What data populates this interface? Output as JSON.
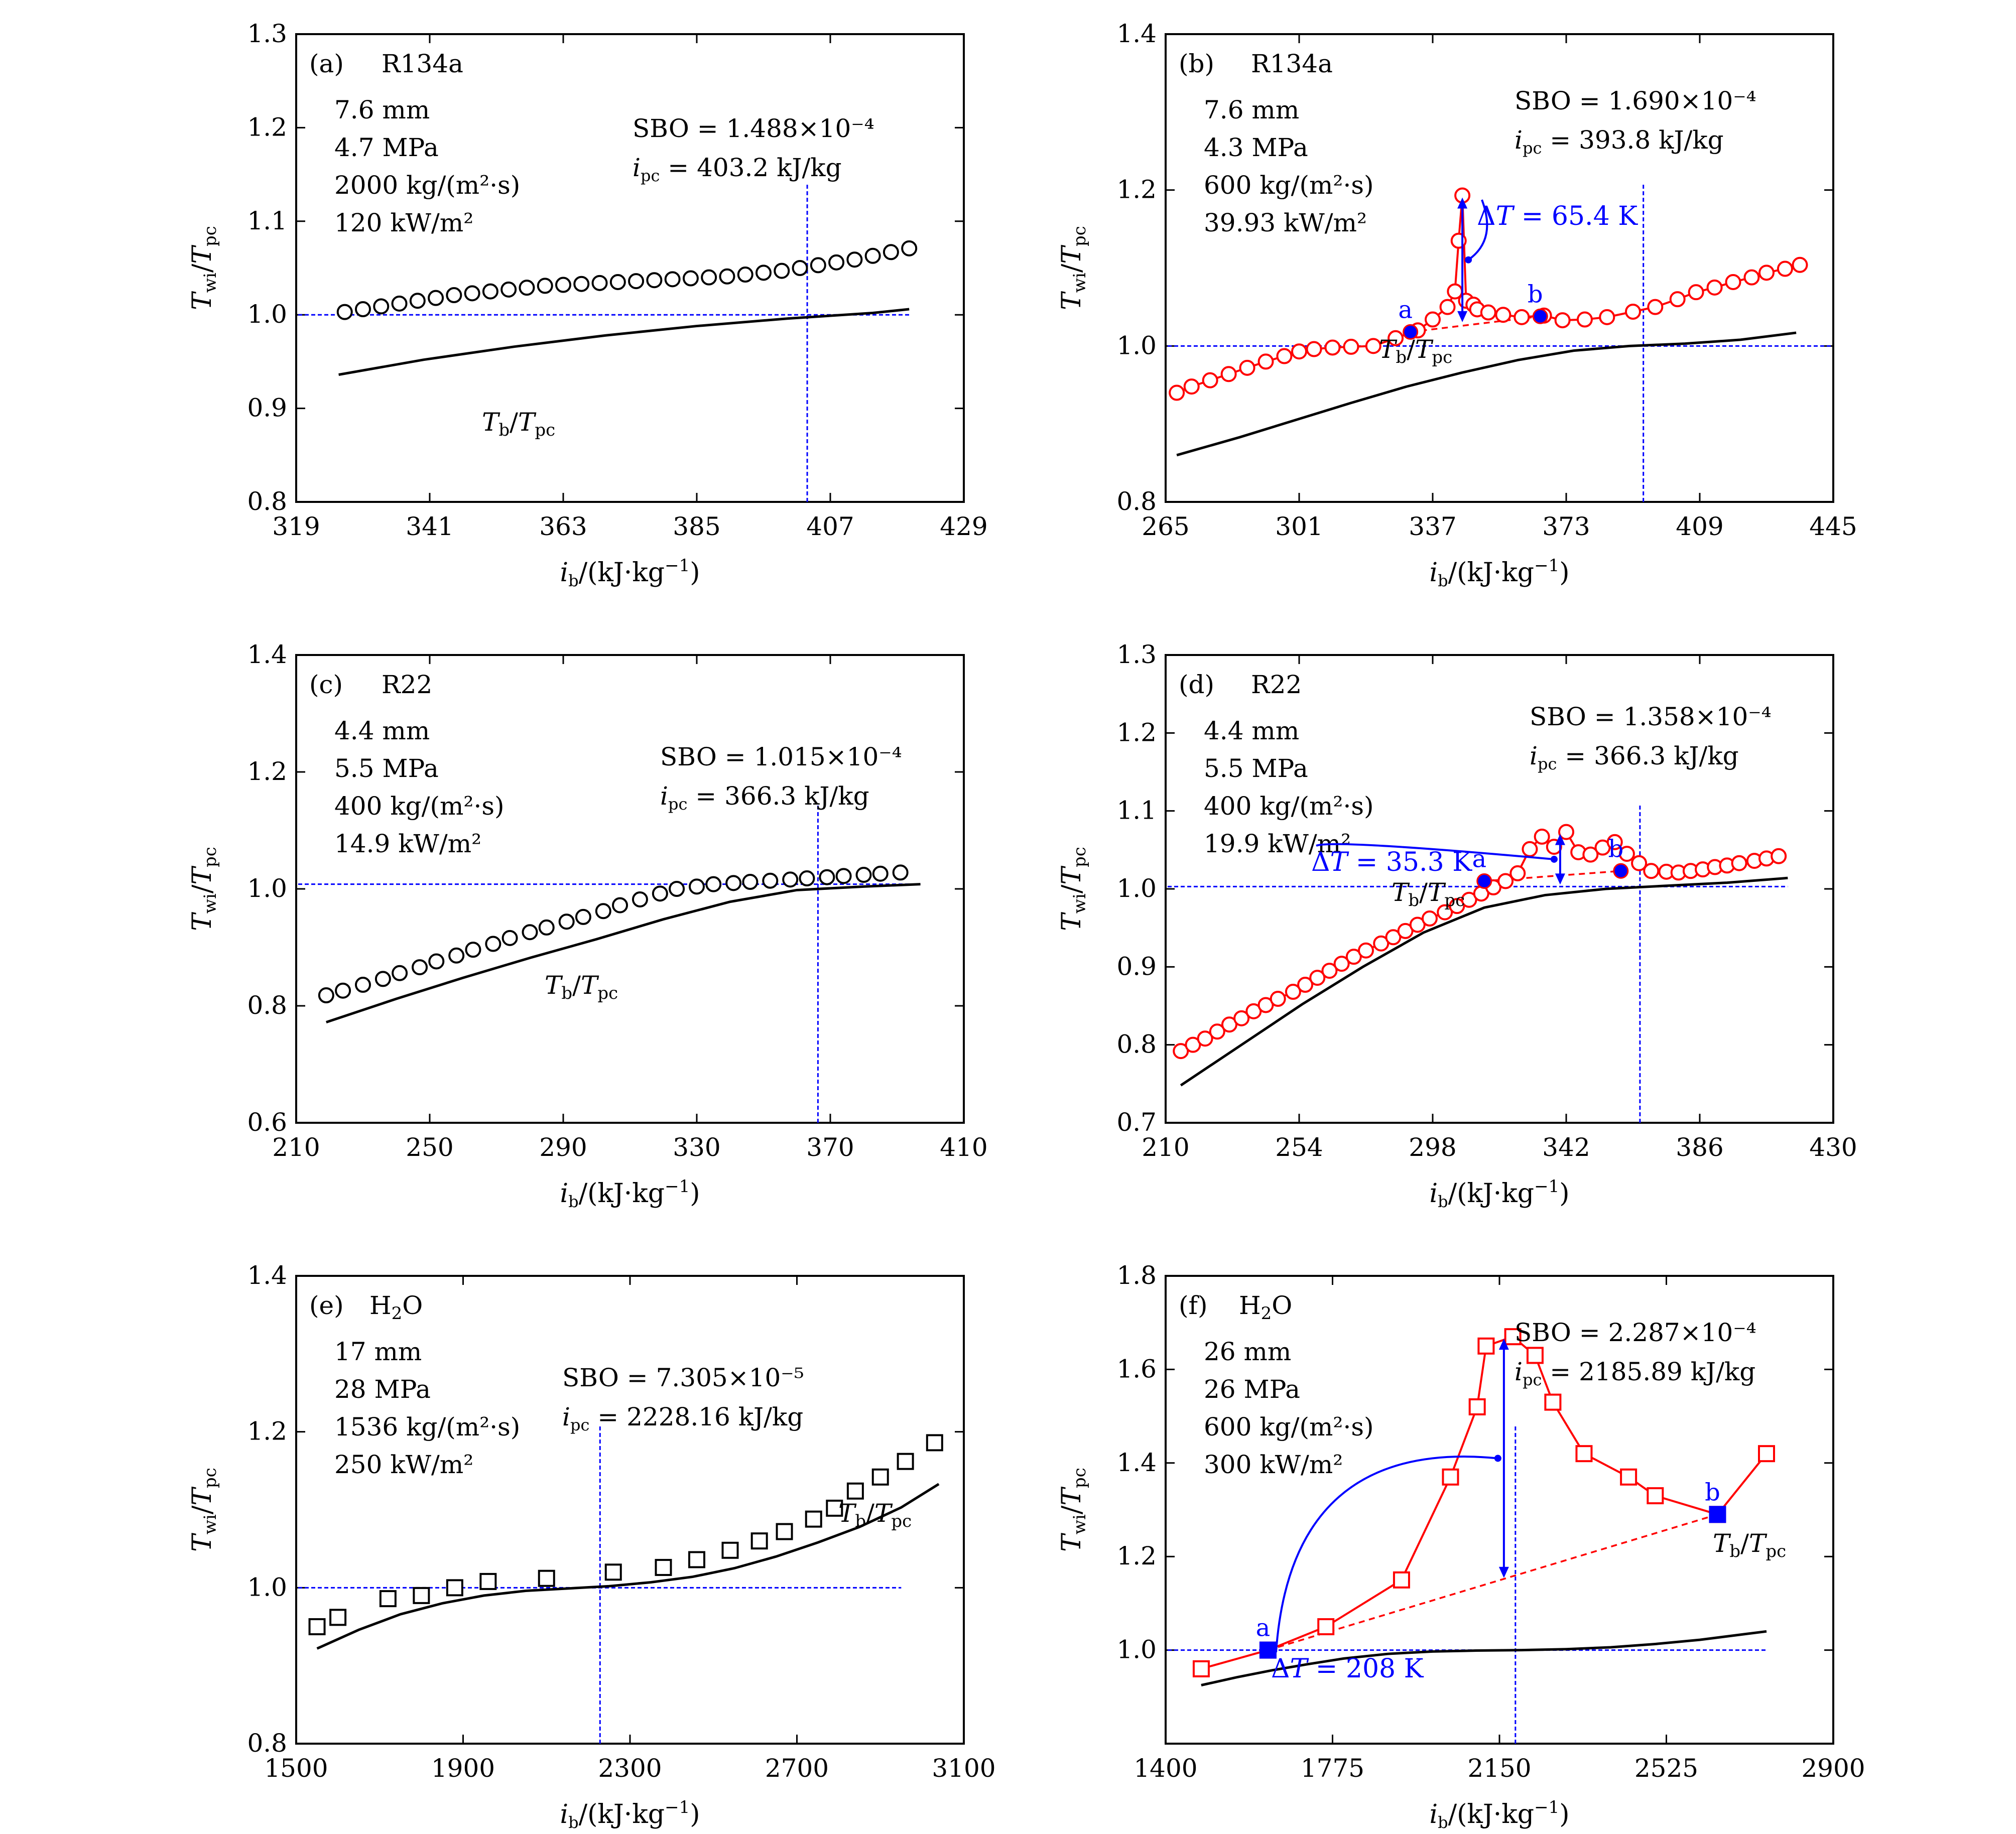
{
  "figure_label": "Twi/Tpc and Tb/Tpc versus ib",
  "chart_data": [
    {
      "type": "scatter",
      "label": "(a)",
      "fluid": "R134a",
      "params": [
        "7.6 mm",
        "4.7 MPa",
        "2000 kg/(m²·s)",
        "120 kW/m²"
      ],
      "sbo": "SBO = 1.488×10⁻⁴",
      "ipc_label": "ipc = 403.2 kJ/kg",
      "ipc": 403.2,
      "xlabel": "ib/(kJ·kg⁻¹)",
      "ylabel": "Twi/Tpc",
      "xlim": [
        319,
        429
      ],
      "ylim": [
        0.8,
        1.3
      ],
      "xticks": [
        319,
        341,
        363,
        385,
        407,
        429
      ],
      "yticks": [
        0.8,
        0.9,
        1.0,
        1.1,
        1.2,
        1.3
      ],
      "ytick_labels": [
        "0.8",
        "0.9",
        "1.0",
        "1.1",
        "1.2",
        "1.3"
      ],
      "marker": "circle",
      "marker_color": "#000000",
      "line_color": "#000000",
      "connect": false,
      "series_name": "Twi/Tpc",
      "x": [
        327,
        330,
        333,
        336,
        339,
        342,
        345,
        348,
        351,
        354,
        357,
        360,
        363,
        366,
        369,
        372,
        375,
        378,
        381,
        384,
        387,
        390,
        393,
        396,
        399,
        402,
        405,
        408,
        411,
        414,
        417,
        420
      ],
      "y": [
        1.003,
        1.006,
        1.009,
        1.012,
        1.015,
        1.018,
        1.021,
        1.023,
        1.025,
        1.027,
        1.029,
        1.031,
        1.032,
        1.033,
        1.034,
        1.035,
        1.036,
        1.037,
        1.038,
        1.039,
        1.04,
        1.041,
        1.043,
        1.045,
        1.047,
        1.05,
        1.053,
        1.056,
        1.059,
        1.063,
        1.067,
        1.071
      ],
      "filled_points": [],
      "tb_name": "Tb/Tpc",
      "tb_x": [
        326,
        340,
        355,
        370,
        385,
        400,
        414,
        420
      ],
      "tb_y": [
        0.936,
        0.952,
        0.966,
        0.978,
        0.988,
        0.996,
        1.002,
        1.006
      ],
      "ref_y": 1.0,
      "ref_x_range": [
        319,
        420
      ],
      "delta_label": "",
      "dashed_ab": null,
      "spike": null
    },
    {
      "type": "scatter",
      "label": "(b)",
      "fluid": "R134a",
      "params": [
        "7.6 mm",
        "4.3 MPa",
        "600 kg/(m²·s)",
        "39.93 kW/m²"
      ],
      "sbo": "SBO = 1.690×10⁻⁴",
      "ipc_label": "ipc = 393.8 kJ/kg",
      "ipc": 393.8,
      "xlabel": "ib/(kJ·kg⁻¹)",
      "ylabel": "Twi/Tpc",
      "xlim": [
        265,
        445
      ],
      "ylim": [
        0.8,
        1.4
      ],
      "xticks": [
        265,
        301,
        337,
        373,
        409,
        445
      ],
      "yticks": [
        0.8,
        1.0,
        1.2,
        1.4
      ],
      "ytick_labels": [
        "0.8",
        "1.0",
        "1.2",
        "1.4"
      ],
      "marker": "circle",
      "marker_color": "#ff0000",
      "line_color": "#ff0000",
      "connect": true,
      "series_name": "Twi/Tpc",
      "x": [
        268,
        272,
        277,
        282,
        287,
        292,
        297,
        301,
        305,
        310,
        315,
        321,
        327,
        333,
        337,
        341,
        343,
        344,
        345,
        346,
        348,
        349,
        352,
        356,
        361,
        367,
        372,
        378,
        384,
        391,
        397,
        403,
        408,
        413,
        418,
        423,
        427,
        432,
        436
      ],
      "y": [
        0.94,
        0.948,
        0.956,
        0.964,
        0.972,
        0.98,
        0.987,
        0.993,
        0.996,
        0.998,
        0.999,
        1.0,
        1.01,
        1.02,
        1.034,
        1.05,
        1.07,
        1.135,
        1.193,
        1.058,
        1.053,
        1.047,
        1.043,
        1.04,
        1.037,
        1.039,
        1.033,
        1.034,
        1.037,
        1.044,
        1.05,
        1.06,
        1.069,
        1.075,
        1.082,
        1.088,
        1.094,
        1.099,
        1.104
      ],
      "filled_points": [
        {
          "x": 331,
          "y": 1.018,
          "label": "a"
        },
        {
          "x": 366,
          "y": 1.038,
          "label": "b"
        }
      ],
      "tb_name": "Tb/Tpc",
      "tb_x": [
        268,
        285,
        300,
        315,
        330,
        345,
        360,
        375,
        390,
        405,
        420,
        435
      ],
      "tb_y": [
        0.86,
        0.883,
        0.905,
        0.927,
        0.948,
        0.966,
        0.982,
        0.994,
        1.0,
        1.003,
        1.008,
        1.017
      ],
      "ref_y": 1.0,
      "ref_x_range": [
        265,
        445
      ],
      "delta_label": "ΔT = 65.4 K",
      "dashed_ab": [
        [
          331,
          1.018
        ],
        [
          366,
          1.038
        ]
      ],
      "spike": {
        "x": 345,
        "y_top": 1.193,
        "y_bottom": 1.028
      }
    },
    {
      "type": "scatter",
      "label": "(c)",
      "fluid": "R22",
      "params": [
        "4.4 mm",
        "5.5 MPa",
        "400 kg/(m²·s)",
        "14.9 kW/m²"
      ],
      "sbo": "SBO = 1.015×10⁻⁴",
      "ipc_label": "ipc = 366.3 kJ/kg",
      "ipc": 366.3,
      "xlabel": "ib/(kJ·kg⁻¹)",
      "ylabel": "Twi/Tpc",
      "xlim": [
        210,
        410
      ],
      "ylim": [
        0.6,
        1.4
      ],
      "xticks": [
        210,
        250,
        290,
        330,
        370,
        410
      ],
      "yticks": [
        0.6,
        0.8,
        1.0,
        1.2,
        1.4
      ],
      "ytick_labels": [
        "0.6",
        "0.8",
        "1.0",
        "1.2",
        "1.4"
      ],
      "marker": "circle",
      "marker_color": "#000000",
      "line_color": "#000000",
      "connect": false,
      "series_name": "Twi/Tpc",
      "x": [
        219,
        224,
        230,
        236,
        241,
        247,
        252,
        258,
        263,
        269,
        274,
        280,
        285,
        291,
        296,
        302,
        307,
        313,
        319,
        324,
        330,
        335,
        341,
        346,
        352,
        358,
        363,
        369,
        374,
        380,
        385,
        391
      ],
      "y": [
        0.818,
        0.826,
        0.836,
        0.846,
        0.856,
        0.866,
        0.876,
        0.886,
        0.896,
        0.906,
        0.916,
        0.926,
        0.934,
        0.944,
        0.952,
        0.962,
        0.972,
        0.982,
        0.992,
        1.0,
        1.004,
        1.008,
        1.01,
        1.012,
        1.014,
        1.016,
        1.018,
        1.02,
        1.022,
        1.024,
        1.026,
        1.028
      ],
      "filled_points": [],
      "tb_name": "Tb/Tpc",
      "tb_x": [
        219,
        240,
        260,
        280,
        300,
        320,
        340,
        360,
        380,
        397
      ],
      "tb_y": [
        0.772,
        0.812,
        0.848,
        0.882,
        0.914,
        0.948,
        0.978,
        0.998,
        1.004,
        1.008
      ],
      "ref_y": 1.008,
      "ref_x_range": [
        210,
        397
      ],
      "delta_label": "",
      "dashed_ab": null,
      "spike": null
    },
    {
      "type": "scatter",
      "label": "(d)",
      "fluid": "R22",
      "params": [
        "4.4 mm",
        "5.5 MPa",
        "400 kg/(m²·s)",
        "19.9 kW/m²"
      ],
      "sbo": "SBO = 1.358×10⁻⁴",
      "ipc_label": "ipc = 366.3 kJ/kg",
      "ipc": 366.3,
      "xlabel": "ib/(kJ·kg⁻¹)",
      "ylabel": "Twi/Tpc",
      "xlim": [
        210,
        430
      ],
      "ylim": [
        0.7,
        1.3
      ],
      "xticks": [
        210,
        254,
        298,
        342,
        386,
        430
      ],
      "yticks": [
        0.7,
        0.8,
        0.9,
        1.0,
        1.1,
        1.2,
        1.3
      ],
      "ytick_labels": [
        "0.7",
        "0.8",
        "0.9",
        "1.0",
        "1.1",
        "1.2",
        "1.3"
      ],
      "marker": "circle",
      "marker_color": "#ff0000",
      "line_color": "#ff0000",
      "connect": true,
      "series_name": "Twi/Tpc",
      "x": [
        215,
        219,
        223,
        227,
        231,
        235,
        239,
        243,
        247,
        252,
        256,
        260,
        264,
        268,
        272,
        276,
        281,
        285,
        289,
        293,
        297,
        302,
        306,
        310,
        314,
        318,
        322,
        326,
        330,
        334,
        338,
        342,
        346,
        350,
        354,
        358,
        362,
        366,
        370,
        375,
        379,
        383,
        387,
        391,
        395,
        399,
        404,
        408,
        412
      ],
      "y": [
        0.792,
        0.8,
        0.808,
        0.817,
        0.826,
        0.834,
        0.843,
        0.851,
        0.859,
        0.868,
        0.877,
        0.886,
        0.895,
        0.904,
        0.913,
        0.921,
        0.93,
        0.938,
        0.946,
        0.954,
        0.962,
        0.97,
        0.978,
        0.986,
        0.994,
        1.002,
        1.01,
        1.02,
        1.051,
        1.067,
        1.054,
        1.073,
        1.047,
        1.044,
        1.053,
        1.06,
        1.045,
        1.033,
        1.023,
        1.022,
        1.021,
        1.023,
        1.025,
        1.028,
        1.03,
        1.033,
        1.036,
        1.039,
        1.042
      ],
      "filled_points": [
        {
          "x": 315,
          "y": 1.01,
          "label": "a"
        },
        {
          "x": 360,
          "y": 1.023,
          "label": "b"
        }
      ],
      "tb_name": "Tb/Tpc",
      "tb_x": [
        215,
        235,
        255,
        275,
        295,
        315,
        335,
        355,
        375,
        395,
        415
      ],
      "tb_y": [
        0.748,
        0.8,
        0.852,
        0.9,
        0.944,
        0.976,
        0.992,
        1.0,
        1.004,
        1.008,
        1.014
      ],
      "ref_y": 1.003,
      "ref_x_range": [
        210,
        415
      ],
      "delta_label": "ΔT = 35.3 K",
      "dashed_ab": [
        [
          315,
          1.01
        ],
        [
          360,
          1.023
        ]
      ],
      "spike": {
        "x": 340,
        "y_top": 1.073,
        "y_bottom": 1.003
      }
    },
    {
      "type": "scatter",
      "label": "(e)",
      "fluid": "H2O",
      "params": [
        "17 mm",
        "28 MPa",
        "1536 kg/(m²·s)",
        "250 kW/m²"
      ],
      "sbo": "SBO = 7.305×10⁻⁵",
      "ipc_label": "ipc = 2228.16 kJ/kg",
      "ipc": 2228.16,
      "xlabel": "ib/(kJ·kg⁻¹)",
      "ylabel": "Twi/Tpc",
      "xlim": [
        1500,
        3100
      ],
      "ylim": [
        0.8,
        1.4
      ],
      "xticks": [
        1500,
        1900,
        2300,
        2700,
        3100
      ],
      "yticks": [
        0.8,
        1.0,
        1.2,
        1.4
      ],
      "ytick_labels": [
        "0.8",
        "1.0",
        "1.2",
        "1.4"
      ],
      "marker": "square",
      "marker_color": "#000000",
      "line_color": "#000000",
      "connect": false,
      "series_name": "Twi/Tpc",
      "x": [
        1550,
        1600,
        1720,
        1800,
        1880,
        1960,
        2100,
        2260,
        2380,
        2460,
        2540,
        2610,
        2670,
        2740,
        2790,
        2840,
        2900,
        2960,
        3030
      ],
      "y": [
        0.95,
        0.962,
        0.986,
        0.99,
        1.0,
        1.008,
        1.012,
        1.02,
        1.026,
        1.036,
        1.048,
        1.06,
        1.072,
        1.088,
        1.102,
        1.124,
        1.142,
        1.162,
        1.186
      ],
      "filled_points": [],
      "tb_name": "Tb/Tpc",
      "tb_x": [
        1550,
        1650,
        1750,
        1850,
        1950,
        2050,
        2150,
        2250,
        2350,
        2450,
        2550,
        2650,
        2750,
        2850,
        2950,
        3040
      ],
      "tb_y": [
        0.922,
        0.946,
        0.966,
        0.98,
        0.99,
        0.996,
        0.999,
        1.002,
        1.007,
        1.014,
        1.025,
        1.04,
        1.058,
        1.078,
        1.103,
        1.133
      ],
      "ref_y": 1.0,
      "ref_x_range": [
        1500,
        2950
      ],
      "delta_label": "",
      "dashed_ab": null,
      "spike": null
    },
    {
      "type": "scatter",
      "label": "(f)",
      "fluid": "H2O",
      "params": [
        "26 mm",
        "26 MPa",
        "600 kg/(m²·s)",
        "300 kW/m²"
      ],
      "sbo": "SBO = 2.287×10⁻⁴",
      "ipc_label": "ipc = 2185.89 kJ/kg",
      "ipc": 2185.89,
      "xlabel": "ib/(kJ·kg⁻¹)",
      "ylabel": "Twi/Tpc",
      "xlim": [
        1400,
        2900
      ],
      "ylim": [
        0.8,
        1.8
      ],
      "xticks": [
        1400,
        1775,
        2150,
        2525,
        2900
      ],
      "yticks": [
        1.0,
        1.2,
        1.4,
        1.6,
        1.8
      ],
      "ytick_labels": [
        "1.0",
        "1.2",
        "1.4",
        "1.6",
        "1.8"
      ],
      "marker": "square",
      "marker_color": "#ff0000",
      "line_color": "#ff0000",
      "connect": true,
      "series_name": "Twi/Tpc",
      "x": [
        1480,
        1630,
        1760,
        1930,
        2040,
        2100,
        2120,
        2180,
        2230,
        2270,
        2340,
        2440,
        2500,
        2640,
        2750
      ],
      "y": [
        0.96,
        1.0,
        1.05,
        1.15,
        1.37,
        1.52,
        1.65,
        1.67,
        1.63,
        1.53,
        1.42,
        1.37,
        1.33,
        1.29,
        1.42
      ],
      "filled_points": [
        {
          "x": 1630,
          "y": 1.0,
          "label": "a"
        },
        {
          "x": 2640,
          "y": 1.29,
          "label": "b"
        }
      ],
      "tb_name": "Tb/Tpc",
      "tb_x": [
        1480,
        1560,
        1640,
        1720,
        1800,
        1900,
        2000,
        2100,
        2200,
        2300,
        2400,
        2500,
        2600,
        2700,
        2750
      ],
      "tb_y": [
        0.925,
        0.942,
        0.957,
        0.97,
        0.982,
        0.992,
        0.997,
        0.999,
        1.0,
        1.002,
        1.006,
        1.013,
        1.022,
        1.034,
        1.04
      ],
      "ref_y": 1.0,
      "ref_x_range": [
        1400,
        2750
      ],
      "delta_label": "ΔT = 208 K",
      "dashed_ab": [
        [
          1630,
          1.0
        ],
        [
          2640,
          1.29
        ]
      ],
      "spike": {
        "x": 2160,
        "y_top": 1.67,
        "y_bottom": 1.15
      }
    }
  ]
}
